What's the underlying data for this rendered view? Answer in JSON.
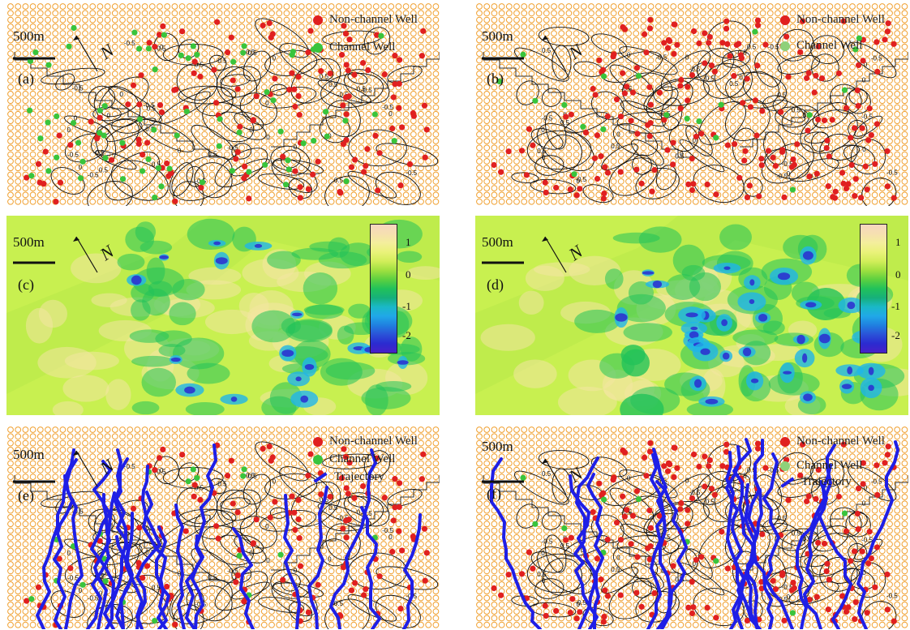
{
  "scale_label": "500m",
  "north_label": "N",
  "panels": [
    {
      "label": "(a)",
      "type": "map"
    },
    {
      "label": "(b)",
      "type": "map"
    },
    {
      "label": "(c)",
      "type": "heat"
    },
    {
      "label": "(d)",
      "type": "heat"
    },
    {
      "label": "(e)",
      "type": "map"
    },
    {
      "label": "(f)",
      "type": "map"
    }
  ],
  "legend": {
    "non_channel": "Non-channel Well",
    "channel": "Channel Well",
    "trajectory": "Trajectory"
  },
  "contour_labels": [
    "0",
    "0.5",
    "-0.5"
  ],
  "colorbar_ticks": [
    "1",
    "0",
    "-1",
    "-2"
  ],
  "colors": {
    "grid_circle": "#f0a030",
    "non_channel": "#e02020",
    "channel": "#39c43c",
    "trajectory": "#1f1fe6",
    "heat_low": "#2b2bd0",
    "heat_high": "#f6d6c0",
    "heat_base": "#c8f050"
  }
}
